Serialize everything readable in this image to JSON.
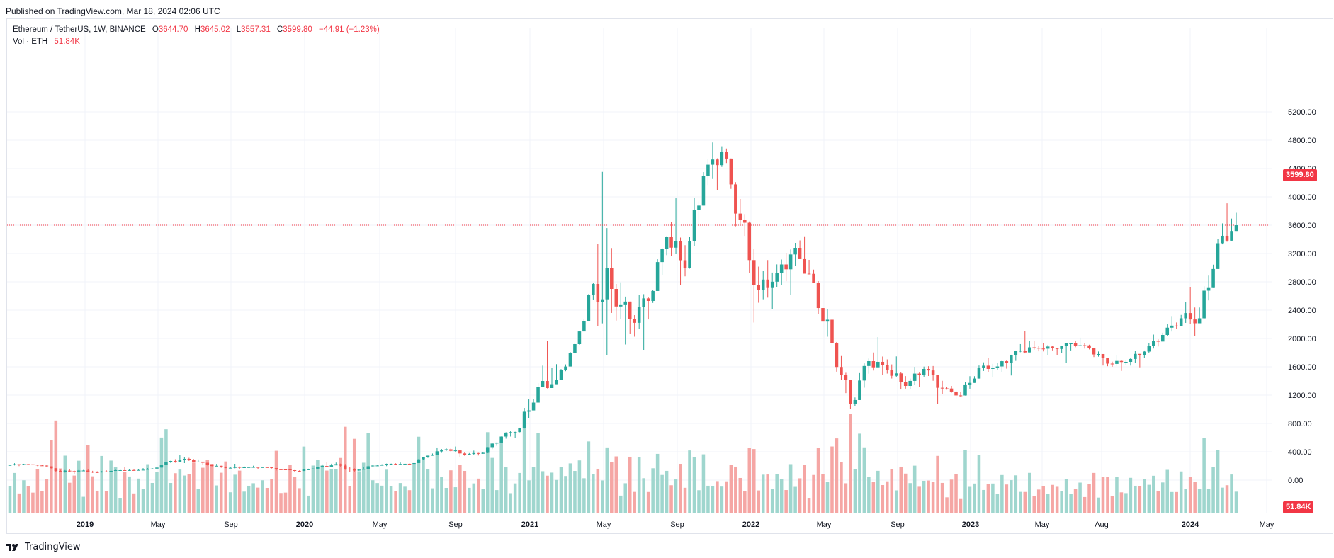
{
  "published": "Published on TradingView.com, Mar 18, 2024 02:06 UTC",
  "legend": {
    "symbol": "Ethereum / TetherUS, 1W, BINANCE",
    "o_label": "O",
    "o": "3644.70",
    "h_label": "H",
    "h": "3645.02",
    "l_label": "L",
    "l": "3557.31",
    "c_label": "C",
    "c": "3599.80",
    "change": "−44.91 (−1.23%)",
    "vol_label": "Vol · ETH",
    "vol": "51.84K"
  },
  "price_tag": "3599.80",
  "volume_tag": "51.84K",
  "brand": "TradingView",
  "colors": {
    "up": "#26a69a",
    "down": "#ef5350",
    "vol_up": "#9fd6ce",
    "vol_down": "#f5a6a4",
    "grid": "#f0f3fa",
    "last": "#f23645"
  },
  "chart_data": {
    "type": "candlestick",
    "title": "Ethereum / TetherUS, 1W, BINANCE",
    "y_ticks": [
      "5200.00",
      "4800.00",
      "4400.00",
      "4000.00",
      "3600.00",
      "3200.00",
      "2800.00",
      "2400.00",
      "2000.00",
      "1600.00",
      "1200.00",
      "800.00",
      "400.00",
      "0.00"
    ],
    "x_ticks": [
      "2019",
      "May",
      "Sep",
      "2020",
      "May",
      "Sep",
      "2021",
      "May",
      "Sep",
      "2022",
      "May",
      "Sep",
      "2023",
      "May",
      "Aug",
      "2024",
      "May"
    ],
    "ylim": [
      0,
      5200
    ],
    "last_price": 3599.8,
    "series": [
      {
        "x": "2018-09",
        "o": 210,
        "h": 240,
        "l": 190,
        "c": 225
      },
      {
        "x": "2018-10",
        "o": 225,
        "h": 230,
        "l": 195,
        "c": 205
      },
      {
        "x": "2018-11",
        "o": 205,
        "h": 215,
        "l": 110,
        "c": 120
      },
      {
        "x": "2018-12",
        "o": 120,
        "h": 160,
        "l": 80,
        "c": 135
      },
      {
        "x": "2019-01",
        "o": 135,
        "h": 160,
        "l": 100,
        "c": 110
      },
      {
        "x": "2019-02",
        "o": 110,
        "h": 160,
        "l": 100,
        "c": 140
      },
      {
        "x": "2019-03",
        "o": 140,
        "h": 180,
        "l": 130,
        "c": 140
      },
      {
        "x": "2019-04",
        "o": 140,
        "h": 185,
        "l": 135,
        "c": 162
      },
      {
        "x": "2019-05",
        "o": 162,
        "h": 280,
        "l": 160,
        "c": 270
      },
      {
        "x": "2019-06",
        "o": 270,
        "h": 360,
        "l": 230,
        "c": 290
      },
      {
        "x": "2019-07",
        "o": 290,
        "h": 310,
        "l": 190,
        "c": 215
      },
      {
        "x": "2019-08",
        "o": 215,
        "h": 240,
        "l": 160,
        "c": 172
      },
      {
        "x": "2019-09",
        "o": 172,
        "h": 225,
        "l": 150,
        "c": 180
      },
      {
        "x": "2019-10",
        "o": 180,
        "h": 200,
        "l": 160,
        "c": 182
      },
      {
        "x": "2019-11",
        "o": 182,
        "h": 195,
        "l": 135,
        "c": 150
      },
      {
        "x": "2019-12",
        "o": 150,
        "h": 155,
        "l": 115,
        "c": 130
      },
      {
        "x": "2020-01",
        "o": 130,
        "h": 190,
        "l": 125,
        "c": 180
      },
      {
        "x": "2020-02",
        "o": 180,
        "h": 290,
        "l": 175,
        "c": 225
      },
      {
        "x": "2020-03",
        "o": 225,
        "h": 250,
        "l": 90,
        "c": 135
      },
      {
        "x": "2020-04",
        "o": 135,
        "h": 230,
        "l": 125,
        "c": 205
      },
      {
        "x": "2020-05",
        "o": 205,
        "h": 240,
        "l": 185,
        "c": 230
      },
      {
        "x": "2020-06",
        "o": 230,
        "h": 250,
        "l": 215,
        "c": 225
      },
      {
        "x": "2020-07",
        "o": 225,
        "h": 350,
        "l": 220,
        "c": 345
      },
      {
        "x": "2020-08",
        "o": 345,
        "h": 490,
        "l": 340,
        "c": 435
      },
      {
        "x": "2020-09",
        "o": 435,
        "h": 490,
        "l": 310,
        "c": 360
      },
      {
        "x": "2020-10",
        "o": 360,
        "h": 420,
        "l": 335,
        "c": 385
      },
      {
        "x": "2020-11",
        "o": 385,
        "h": 620,
        "l": 370,
        "c": 615
      },
      {
        "x": "2020-12",
        "o": 615,
        "h": 750,
        "l": 530,
        "c": 735
      },
      {
        "x": "2021-01",
        "o": 735,
        "h": 1470,
        "l": 715,
        "c": 1315
      },
      {
        "x": "2021-02",
        "o": 1315,
        "h": 2040,
        "l": 1300,
        "c": 1420
      },
      {
        "x": "2021-03",
        "o": 1420,
        "h": 1950,
        "l": 1400,
        "c": 1920
      },
      {
        "x": "2021-04",
        "o": 1920,
        "h": 2800,
        "l": 1900,
        "c": 2770
      },
      {
        "x": "2021-05",
        "o": 2770,
        "h": 4370,
        "l": 1730,
        "c": 2700
      },
      {
        "x": "2021-06",
        "o": 2700,
        "h": 2900,
        "l": 1700,
        "c": 2270
      },
      {
        "x": "2021-07",
        "o": 2270,
        "h": 2700,
        "l": 1710,
        "c": 2530
      },
      {
        "x": "2021-08",
        "o": 2530,
        "h": 3470,
        "l": 2450,
        "c": 3430
      },
      {
        "x": "2021-09",
        "o": 3430,
        "h": 4030,
        "l": 2650,
        "c": 3000
      },
      {
        "x": "2021-10",
        "o": 3000,
        "h": 4460,
        "l": 2960,
        "c": 4290
      },
      {
        "x": "2021-11",
        "o": 4290,
        "h": 4870,
        "l": 3940,
        "c": 4630
      },
      {
        "x": "2021-12",
        "o": 4630,
        "h": 4780,
        "l": 3500,
        "c": 3680
      },
      {
        "x": "2022-01",
        "o": 3680,
        "h": 3900,
        "l": 2160,
        "c": 2690
      },
      {
        "x": "2022-02",
        "o": 2690,
        "h": 3280,
        "l": 2300,
        "c": 2920
      },
      {
        "x": "2022-03",
        "o": 2920,
        "h": 3480,
        "l": 2440,
        "c": 3280
      },
      {
        "x": "2022-04",
        "o": 3280,
        "h": 3580,
        "l": 2780,
        "c": 2730
      },
      {
        "x": "2022-05",
        "o": 2730,
        "h": 2960,
        "l": 1700,
        "c": 1940
      },
      {
        "x": "2022-06",
        "o": 1940,
        "h": 1970,
        "l": 880,
        "c": 1070
      },
      {
        "x": "2022-07",
        "o": 1070,
        "h": 1785,
        "l": 1000,
        "c": 1680
      },
      {
        "x": "2022-08",
        "o": 1680,
        "h": 2030,
        "l": 1420,
        "c": 1550
      },
      {
        "x": "2022-09",
        "o": 1550,
        "h": 1790,
        "l": 1220,
        "c": 1330
      },
      {
        "x": "2022-10",
        "o": 1330,
        "h": 1665,
        "l": 1190,
        "c": 1570
      },
      {
        "x": "2022-11",
        "o": 1570,
        "h": 1680,
        "l": 1070,
        "c": 1295
      },
      {
        "x": "2022-12",
        "o": 1295,
        "h": 1355,
        "l": 1150,
        "c": 1195
      },
      {
        "x": "2023-01",
        "o": 1195,
        "h": 1680,
        "l": 1190,
        "c": 1585
      },
      {
        "x": "2023-02",
        "o": 1585,
        "h": 1740,
        "l": 1460,
        "c": 1605
      },
      {
        "x": "2023-03",
        "o": 1605,
        "h": 1850,
        "l": 1370,
        "c": 1820
      },
      {
        "x": "2023-04",
        "o": 1820,
        "h": 2140,
        "l": 1780,
        "c": 1870
      },
      {
        "x": "2023-05",
        "o": 1870,
        "h": 1930,
        "l": 1760,
        "c": 1870
      },
      {
        "x": "2023-06",
        "o": 1870,
        "h": 1930,
        "l": 1620,
        "c": 1935
      },
      {
        "x": "2023-07",
        "o": 1935,
        "h": 2030,
        "l": 1820,
        "c": 1860
      },
      {
        "x": "2023-08",
        "o": 1860,
        "h": 1870,
        "l": 1540,
        "c": 1645
      },
      {
        "x": "2023-09",
        "o": 1645,
        "h": 1750,
        "l": 1530,
        "c": 1670
      },
      {
        "x": "2023-10",
        "o": 1670,
        "h": 1860,
        "l": 1520,
        "c": 1815
      },
      {
        "x": "2023-11",
        "o": 1815,
        "h": 2140,
        "l": 1770,
        "c": 2050
      },
      {
        "x": "2023-12",
        "o": 2050,
        "h": 2420,
        "l": 2020,
        "c": 2285
      },
      {
        "x": "2024-01",
        "o": 2285,
        "h": 2720,
        "l": 2100,
        "c": 2285
      },
      {
        "x": "2024-02",
        "o": 2285,
        "h": 3520,
        "l": 2250,
        "c": 3345
      },
      {
        "x": "2024-03",
        "o": 3345,
        "h": 4100,
        "l": 3300,
        "c": 3600
      }
    ],
    "volume": {
      "last": "51.84K"
    }
  }
}
